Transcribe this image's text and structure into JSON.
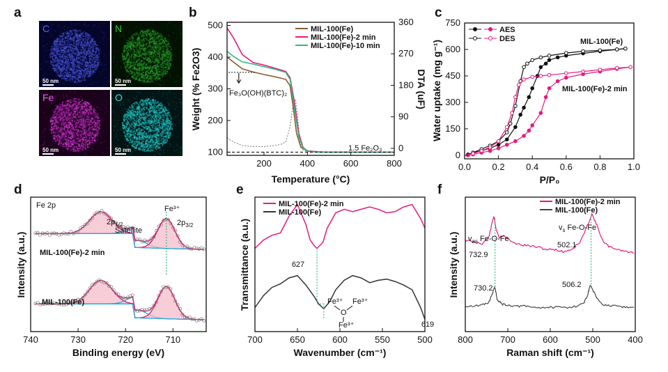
{
  "panels": {
    "a": "a",
    "b": "b",
    "c": "c",
    "d": "d",
    "e": "e",
    "f": "f"
  },
  "maps": [
    {
      "element": "C",
      "color": "#5a6af7",
      "scale": "50 nm",
      "bg": "#05052a",
      "glow": "#3c45c8"
    },
    {
      "element": "N",
      "color": "#35c23a",
      "scale": "50 nm",
      "bg": "#021102",
      "glow": "#1c7d1c"
    },
    {
      "element": "Fe",
      "color": "#f05cf0",
      "scale": "50 nm",
      "bg": "#1a021a",
      "glow": "#b216b2"
    },
    {
      "element": "O",
      "color": "#2ee0e0",
      "scale": "50 nm",
      "bg": "#021414",
      "glow": "#1bbcbc"
    }
  ],
  "chart_data": [
    {
      "panel": "b",
      "type": "line",
      "xlabel": "Temperature (°C)",
      "ylabel": "Weight (% Fe2O3)",
      "y2label": "DTA (uF)",
      "xlim": [
        30,
        800
      ],
      "ylim": [
        90,
        510
      ],
      "y2lim": [
        -20,
        360
      ],
      "xticks": [
        200,
        400,
        600,
        800
      ],
      "yticks": [
        100,
        200,
        300,
        400,
        500
      ],
      "y2ticks": [
        0,
        90,
        180,
        270,
        360
      ],
      "series": [
        {
          "name": "MIL-100(Fe)",
          "color": "#8b5a2b",
          "x": [
            30,
            100,
            150,
            200,
            250,
            300,
            320,
            335,
            350,
            370,
            400,
            450,
            500,
            800
          ],
          "y": [
            400,
            363,
            353,
            345,
            338,
            330,
            310,
            240,
            160,
            115,
            104,
            101,
            100,
            100
          ]
        },
        {
          "name": "MIL-100(Fe)-2 min",
          "color": "#e6197d",
          "x": [
            30,
            60,
            100,
            150,
            200,
            250,
            300,
            320,
            340,
            360,
            380,
            400,
            450,
            500,
            800
          ],
          "y": [
            492,
            460,
            408,
            383,
            375,
            365,
            355,
            335,
            260,
            160,
            115,
            104,
            101,
            100,
            100
          ]
        },
        {
          "name": "MIL-100(Fe)-10 min",
          "color": "#33b87e",
          "x": [
            30,
            60,
            100,
            150,
            200,
            250,
            300,
            320,
            340,
            360,
            380,
            400,
            450,
            800
          ],
          "y": [
            418,
            402,
            385,
            378,
            370,
            362,
            352,
            330,
            240,
            150,
            113,
            103,
            100,
            100
          ]
        }
      ],
      "dta": {
        "color": "#888888",
        "x": [
          30,
          60,
          100,
          150,
          200,
          250,
          280,
          300,
          320,
          335,
          345,
          355,
          365,
          380,
          400,
          450,
          800
        ],
        "y": [
          30,
          18,
          8,
          5,
          5,
          8,
          12,
          18,
          60,
          130,
          140,
          90,
          20,
          -5,
          -10,
          -10,
          -10
        ]
      },
      "annotations": {
        "intermediate": "Fe₃O(OH)(BTC)₂",
        "residue": "1.5 Fe₂O₃"
      },
      "legend": "top-right"
    },
    {
      "panel": "c",
      "type": "line",
      "xlabel": "P/P₀",
      "ylabel": "Water uptake (mg g⁻¹)",
      "xlim": [
        0,
        1.0
      ],
      "ylim": [
        -20,
        750
      ],
      "xticks": [
        0.0,
        0.2,
        0.4,
        0.6,
        0.8,
        1.0
      ],
      "yticks": [
        0,
        150,
        300,
        450,
        600,
        750
      ],
      "legend_entries": [
        "AES",
        "DES"
      ],
      "annotations": {
        "mof": "MIL-100(Fe)",
        "mof2": "MIL-100(Fe)-2 min"
      },
      "series": [
        {
          "name": "MIL-100(Fe) AES",
          "color": "#111111",
          "marker": "filled",
          "x": [
            0.02,
            0.05,
            0.1,
            0.15,
            0.2,
            0.25,
            0.3,
            0.33,
            0.35,
            0.38,
            0.4,
            0.43,
            0.45,
            0.48,
            0.5,
            0.55,
            0.6,
            0.7,
            0.8,
            0.9,
            0.95
          ],
          "y": [
            5,
            15,
            25,
            40,
            60,
            90,
            160,
            230,
            270,
            330,
            380,
            450,
            500,
            520,
            540,
            555,
            565,
            578,
            590,
            600,
            605
          ]
        },
        {
          "name": "MIL-100(Fe) DES",
          "color": "#111111",
          "marker": "open",
          "x": [
            0.95,
            0.9,
            0.8,
            0.7,
            0.6,
            0.5,
            0.45,
            0.4,
            0.37,
            0.35,
            0.33,
            0.3,
            0.27,
            0.25,
            0.2,
            0.15,
            0.1,
            0.05
          ],
          "y": [
            605,
            600,
            595,
            590,
            580,
            565,
            555,
            540,
            520,
            500,
            420,
            280,
            180,
            130,
            80,
            55,
            35,
            15
          ]
        },
        {
          "name": "MIL-100(Fe)-2 min AES",
          "color": "#e6197d",
          "marker": "filled",
          "x": [
            0.02,
            0.05,
            0.1,
            0.15,
            0.2,
            0.25,
            0.3,
            0.35,
            0.38,
            0.4,
            0.45,
            0.48,
            0.5,
            0.55,
            0.6,
            0.7,
            0.8,
            0.9,
            0.98
          ],
          "y": [
            0,
            5,
            15,
            25,
            40,
            60,
            80,
            110,
            140,
            170,
            240,
            330,
            380,
            420,
            440,
            460,
            475,
            490,
            500
          ]
        },
        {
          "name": "MIL-100(Fe)-2 min DES",
          "color": "#e6197d",
          "marker": "open",
          "x": [
            0.98,
            0.9,
            0.8,
            0.7,
            0.6,
            0.5,
            0.45,
            0.4,
            0.35,
            0.32,
            0.3,
            0.28,
            0.25,
            0.2,
            0.15,
            0.1,
            0.05
          ],
          "y": [
            500,
            495,
            485,
            475,
            465,
            455,
            450,
            445,
            430,
            400,
            330,
            240,
            160,
            80,
            45,
            25,
            10
          ]
        }
      ]
    },
    {
      "panel": "d",
      "type": "line",
      "title": "Fe 2p",
      "xlabel": "Binding energy (eV)",
      "ylabel": "Intensity (a.u.)",
      "xlim": [
        740,
        703
      ],
      "xticks": [
        740,
        730,
        720,
        710
      ],
      "labels": {
        "p12": "2p",
        "p12sub": "1/2",
        "p32": "2p",
        "p32sub": "3/2",
        "sat": "Satellite",
        "fe3": "Fe³⁺",
        "top": "MIL-100(Fe)-2 min",
        "bottom": "MIL-100(Fe)"
      }
    },
    {
      "panel": "e",
      "type": "line",
      "xlabel": "Wavenumber (cm⁻¹)",
      "ylabel": "Transmittance (a.u.)",
      "xlim": [
        700,
        500
      ],
      "xticks": [
        700,
        650,
        600,
        550,
        500
      ],
      "series": [
        {
          "name": "MIL-100(Fe)-2 min",
          "color": "#e6197d",
          "x": [
            700,
            690,
            680,
            670,
            660,
            650,
            640,
            635,
            630,
            627,
            620,
            615,
            605,
            595,
            585,
            575,
            565,
            555,
            545,
            535,
            525,
            515,
            505,
            500
          ],
          "y": [
            0.55,
            0.62,
            0.66,
            0.68,
            0.82,
            0.92,
            0.75,
            0.62,
            0.57,
            0.55,
            0.6,
            0.72,
            0.85,
            0.88,
            0.86,
            0.88,
            0.9,
            0.88,
            0.85,
            0.86,
            0.9,
            0.92,
            0.8,
            0.72
          ]
        },
        {
          "name": "MIL-100(Fe)",
          "color": "#333333",
          "x": [
            700,
            690,
            680,
            670,
            660,
            650,
            640,
            630,
            625,
            619,
            612,
            605,
            595,
            585,
            575,
            565,
            555,
            545,
            535,
            525,
            515,
            505,
            500
          ],
          "y": [
            0.05,
            0.15,
            0.22,
            0.25,
            0.3,
            0.32,
            0.24,
            0.14,
            0.08,
            0.04,
            0.1,
            0.2,
            0.28,
            0.32,
            0.3,
            0.26,
            0.28,
            0.29,
            0.27,
            0.24,
            0.2,
            0.05,
            -0.05
          ]
        }
      ],
      "labels": {
        "a": "627",
        "b": "619"
      },
      "legend": "top-left"
    },
    {
      "panel": "f",
      "type": "line",
      "xlabel": "Raman shift (cm⁻¹)",
      "ylabel": "Intensity (a.u.)",
      "xlim": [
        800,
        400
      ],
      "xticks": [
        800,
        700,
        600,
        500,
        400
      ],
      "series": [
        {
          "name": "MIL-100(Fe)-2 min",
          "color": "#e6197d",
          "x": [
            800,
            780,
            760,
            745,
            735,
            732.9,
            728,
            720,
            710,
            690,
            670,
            650,
            630,
            610,
            590,
            570,
            550,
            530,
            515,
            502.1,
            490,
            475,
            460,
            440,
            420,
            400
          ],
          "y": [
            0.68,
            0.66,
            0.65,
            0.7,
            0.85,
            0.88,
            0.78,
            0.7,
            0.72,
            0.66,
            0.64,
            0.63,
            0.62,
            0.6,
            0.6,
            0.58,
            0.6,
            0.66,
            0.78,
            0.9,
            0.8,
            0.66,
            0.62,
            0.6,
            0.58,
            0.57
          ]
        },
        {
          "name": "MIL-100(Fe)",
          "color": "#444444",
          "x": [
            800,
            780,
            760,
            745,
            735,
            730.2,
            725,
            715,
            700,
            680,
            660,
            640,
            620,
            600,
            580,
            560,
            540,
            520,
            510,
            506.2,
            495,
            480,
            460,
            440,
            420,
            400
          ],
          "y": [
            0.12,
            0.12,
            0.13,
            0.15,
            0.24,
            0.28,
            0.18,
            0.14,
            0.13,
            0.12,
            0.12,
            0.11,
            0.11,
            0.11,
            0.11,
            0.11,
            0.12,
            0.15,
            0.24,
            0.3,
            0.22,
            0.14,
            0.12,
            0.12,
            0.11,
            0.11
          ]
        }
      ],
      "labels": {
        "a1": "732.9",
        "a2": "502.1",
        "b1": "730.2",
        "b2": "506.2",
        "vas": "v",
        "vassub": "as",
        "vasrest": " Fe-O-Fe",
        "vs": "v",
        "vssub": "s",
        "vsrest": " Fe-O-Fe"
      },
      "legend": "top-right"
    }
  ]
}
